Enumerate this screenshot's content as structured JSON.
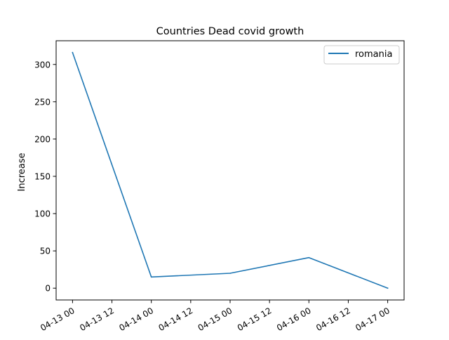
{
  "chart_data": {
    "type": "line",
    "title": "Countries Dead covid growth",
    "xlabel": "",
    "ylabel": "Increase",
    "x": [
      "04-13 00",
      "04-14 00",
      "04-15 00",
      "04-16 00",
      "04-17 00"
    ],
    "x_ticks": [
      "04-13 00",
      "04-13 12",
      "04-14 00",
      "04-14 12",
      "04-15 00",
      "04-15 12",
      "04-16 00",
      "04-16 12",
      "04-17 00"
    ],
    "y_ticks": [
      0,
      50,
      100,
      150,
      200,
      250,
      300
    ],
    "xlim": [
      "04-12 19",
      "04-17 05"
    ],
    "ylim": [
      -15.8,
      331.8
    ],
    "grid": false,
    "legend_position": "top-right",
    "series": [
      {
        "name": "romania",
        "color": "#1f77b4",
        "values": [
          316,
          15,
          20,
          41,
          0
        ]
      }
    ]
  }
}
